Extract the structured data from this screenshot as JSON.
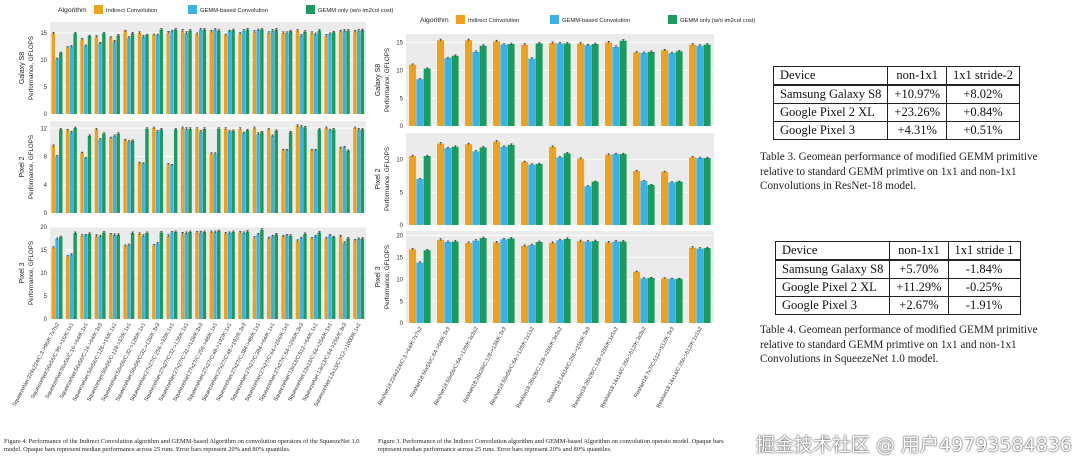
{
  "legend": {
    "title": "Algorithm",
    "items": [
      {
        "label": "Indirect Convolution",
        "color": "#f0a11c"
      },
      {
        "label": "GEMM-based Convolution",
        "color": "#3bb1e6"
      },
      {
        "label": "GEMM only (w/o im2col cost)",
        "color": "#1a9b5f"
      }
    ]
  },
  "chart_data": [
    {
      "type": "bar",
      "chart": "squeezenet",
      "categories": [
        "SqueezeNet:224x224/C:3->96/K:7x7s2",
        "SqueezeNet:56x56/C:96->16/K:1x1",
        "SqueezeNet:56x56/C:16->64/K:1x1",
        "SqueezeNet:56x56/C:16->64/K:3x3",
        "SqueezeNet:56x56/C:128->16/K:1x1",
        "SqueezeNet:56x56/C:128->32/K:1x1",
        "SqueezeNet:56x56/C:32->128/K:1x1",
        "SqueezeNet:56x56/C:32->128/K:3x3",
        "SqueezeNet:27x27/C:256->32/K:1x1",
        "SqueezeNet:27x27/C:32->128/K:1x1",
        "SqueezeNet:27x27/C:32->128/K:3x3",
        "SqueezeNet:27x27/C:256->48/K:1x1",
        "SqueezeNet:27x27/C:48->192/K:1x1",
        "SqueezeNet:27x27/C:48->192/K:3x3",
        "SqueezeNet:27x27/C:384->48/K:1x1",
        "SqueezeNet:27x27/C:384->64/K:1x1",
        "SqueezeNet:27x27/C:64->256/K:1x1",
        "SqueezeNet:27x27/C:64->256/K:3x3",
        "SqueezeNet:13x13/C:512->64/K:1x1",
        "SqueezeNet:13x13/C:64->256/K:1x1",
        "SqueezeNet:13x13/C:64->256/K:3x3",
        "SqueezeNet:13x13/C:512->1000/K:1x1"
      ],
      "panels": [
        {
          "name": "Galaxy S8",
          "ylabel": "Performance, GFLOPS",
          "ylim": [
            0,
            17
          ],
          "yticks": [
            0,
            5,
            10,
            15
          ],
          "series": [
            {
              "name": "Indirect Convolution",
              "values": [
                14.9,
                12.3,
                13.8,
                14.3,
                14.1,
                15.3,
                15.0,
                14.6,
                15.1,
                15.4,
                14.8,
                15.3,
                14.6,
                14.9,
                15.2,
                15.0,
                15.0,
                15.4,
                15.0,
                14.5,
                15.3,
                15.3
              ]
            },
            {
              "name": "GEMM-based Convolution",
              "values": [
                10.2,
                12.5,
                12.6,
                13.1,
                13.4,
                14.1,
                14.3,
                14.6,
                15.3,
                15.0,
                15.6,
                15.6,
                15.3,
                15.4,
                15.5,
                15.4,
                15.0,
                14.5,
                14.8,
                14.8,
                15.4,
                15.4
              ]
            },
            {
              "name": "GEMM only (w/o im2col cost)",
              "values": [
                11.3,
                14.9,
                14.4,
                14.9,
                14.5,
                14.9,
                14.6,
                15.6,
                15.6,
                15.4,
                15.6,
                15.4,
                15.5,
                15.6,
                15.6,
                15.6,
                15.3,
                15.2,
                15.4,
                15.1,
                15.4,
                15.5
              ]
            }
          ]
        },
        {
          "name": "Pixel 2",
          "ylabel": "Performance, GFLOPS",
          "ylim": [
            0,
            13
          ],
          "yticks": [
            0,
            4,
            8,
            12
          ],
          "series": [
            {
              "name": "Indirect Convolution",
              "values": [
                9.5,
                11.7,
                8.5,
                11.8,
                10.6,
                10.3,
                7.1,
                12.0,
                6.9,
                12.0,
                11.9,
                8.4,
                11.9,
                11.9,
                12.0,
                11.8,
                8.9,
                12.3,
                8.9,
                12.0,
                9.2,
                12.0
              ]
            },
            {
              "name": "GEMM-based Convolution",
              "values": [
                8.0,
                11.4,
                7.8,
                10.4,
                10.9,
                10.1,
                7.0,
                11.5,
                6.8,
                11.9,
                11.5,
                8.4,
                11.5,
                11.3,
                11.2,
                10.9,
                8.9,
                12.2,
                8.9,
                11.7,
                9.3,
                11.8
              ]
            },
            {
              "name": "GEMM only (w/o im2col cost)",
              "values": [
                11.8,
                12.0,
                10.9,
                11.2,
                11.2,
                10.2,
                11.9,
                11.8,
                11.8,
                11.9,
                11.9,
                11.9,
                11.6,
                11.7,
                11.4,
                11.6,
                11.4,
                12.1,
                11.8,
                11.8,
                8.8,
                11.8
              ]
            }
          ]
        },
        {
          "name": "Pixel 3",
          "ylabel": "Performance, GFLOPS",
          "ylim": [
            0,
            20
          ],
          "yticks": [
            0,
            5,
            10,
            15,
            20
          ],
          "series": [
            {
              "name": "Indirect Convolution",
              "values": [
                15.5,
                13.6,
                18.1,
                18.1,
                18.4,
                15.9,
                18.5,
                16.0,
                18.1,
                18.6,
                18.8,
                18.9,
                18.6,
                18.8,
                17.7,
                17.6,
                18.0,
                17.0,
                17.5,
                17.6,
                18.0,
                17.1
              ]
            },
            {
              "name": "GEMM-based Convolution",
              "values": [
                17.4,
                14.0,
                18.2,
                18.0,
                18.3,
                16.1,
                18.1,
                16.4,
                18.8,
                18.7,
                18.8,
                18.9,
                18.7,
                18.7,
                18.4,
                18.0,
                18.2,
                17.6,
                18.0,
                18.2,
                16.6,
                17.4
              ]
            },
            {
              "name": "GEMM only (w/o im2col cost)",
              "values": [
                17.8,
                18.7,
                18.5,
                18.8,
                18.3,
                18.7,
                18.7,
                18.8,
                18.9,
                18.9,
                18.9,
                19.1,
                18.9,
                19.0,
                19.4,
                18.4,
                18.1,
                18.5,
                18.8,
                17.8,
                17.5,
                17.5
              ]
            }
          ]
        }
      ]
    },
    {
      "type": "bar",
      "chart": "resnet",
      "categories": [
        "ResNet18:224x224/C:3->64/K:7x7s2",
        "ResNet18:56x56/C:64->64/K:3x3",
        "ResNet18:56x56/C:64->128/K:3x3s2",
        "ResNet18:28x28/C:128->128/K:3x3",
        "ResNet18:56x56/C:64->128/K:1x1s2",
        "ResNet18:28x28/C:128->256/K:3x3s2",
        "ResNet18:14x14/C:256->256/K:3x3",
        "ResNet18:28x28/C:128->256/K:1x1s2",
        "ResNet18:14x14/C:256->512/K:3x3s2",
        "ResNet18:7x7/C:512->512/K:3x3",
        "ResNet18:14x14/C:256->512/K:1x1s2"
      ],
      "panels": [
        {
          "name": "Galaxy S8",
          "ylabel": "Performance, GFLOPS",
          "ylim": [
            0,
            16.5
          ],
          "yticks": [
            0,
            5,
            10,
            15
          ],
          "series": [
            {
              "name": "Indirect Convolution",
              "values": [
                11.0,
                15.4,
                15.4,
                15.2,
                14.6,
                14.9,
                14.8,
                15.0,
                13.2,
                13.6,
                14.6
              ]
            },
            {
              "name": "GEMM-based Convolution",
              "values": [
                8.4,
                12.2,
                13.3,
                14.6,
                12.1,
                14.8,
                14.5,
                14.2,
                13.1,
                13.1,
                14.4
              ]
            },
            {
              "name": "GEMM only (w/o im2col cost)",
              "values": [
                10.3,
                12.6,
                14.4,
                14.7,
                14.8,
                14.8,
                14.7,
                15.3,
                13.3,
                13.4,
                14.6
              ]
            }
          ]
        },
        {
          "name": "Pixel 2",
          "ylabel": "Performance, GFLOPS",
          "ylim": [
            0,
            14
          ],
          "yticks": [
            0,
            5,
            10
          ],
          "series": [
            {
              "name": "Indirect Convolution",
              "values": [
                10.5,
                12.4,
                12.3,
                12.7,
                9.6,
                11.9,
                10.1,
                10.7,
                8.2,
                8.1,
                10.3
              ]
            },
            {
              "name": "GEMM-based Convolution",
              "values": [
                7.0,
                11.7,
                11.2,
                11.9,
                9.2,
                10.3,
                5.9,
                10.8,
                6.7,
                6.5,
                10.2
              ]
            },
            {
              "name": "GEMM only (w/o im2col cost)",
              "values": [
                10.5,
                11.9,
                11.8,
                12.2,
                9.3,
                10.9,
                6.6,
                10.8,
                6.1,
                6.6,
                10.2
              ]
            }
          ]
        },
        {
          "name": "Pixel 3",
          "ylabel": "Performance, GFLOPS",
          "ylim": [
            0,
            21
          ],
          "yticks": [
            0,
            5,
            10,
            15,
            20
          ],
          "series": [
            {
              "name": "Indirect Convolution",
              "values": [
                16.8,
                19.0,
                18.3,
                18.4,
                17.6,
                18.3,
                18.7,
                18.4,
                11.7,
                10.2,
                17.2
              ]
            },
            {
              "name": "GEMM-based Convolution",
              "values": [
                13.8,
                18.5,
                18.8,
                19.1,
                17.8,
                18.9,
                18.6,
                18.6,
                10.2,
                10.1,
                17.0
              ]
            },
            {
              "name": "GEMM only (w/o im2col cost)",
              "values": [
                16.6,
                18.6,
                19.4,
                19.3,
                18.5,
                19.2,
                18.7,
                18.6,
                10.3,
                10.1,
                17.1
              ]
            }
          ]
        }
      ]
    }
  ],
  "figure4_caption": "Figure 4. Performance of the Indirect Convolution algorithm and GEMM-based Algorithm on convolution operators of the SqueezeNet 1.0 model. Opaque bars represent median performance across 25 runs. Error bars represent 20% and 80% quantiles.",
  "figure3_caption": "Figure 3. Performance of the Indirect Convolution algorithm and GEMM-based Algorithm on convolution operato model. Opaque bars represent median performance across 25 runs. Error bars represent 20% and 80% quantiles.",
  "table3": {
    "header": [
      "Device",
      "non-1x1",
      "1x1 stride-2"
    ],
    "rows": [
      [
        "Samsung Galaxy S8",
        "+10.97%",
        "+8.02%"
      ],
      [
        "Google Pixel 2 XL",
        "+23.26%",
        "+0.84%"
      ],
      [
        "Google Pixel 3",
        "+4.31%",
        "+0.51%"
      ]
    ],
    "caption": "Table 3. Geomean performance of modified GEMM primitive relative to standard GEMM primtive on 1x1 and non-1x1 Convolutions in ResNet-18 model."
  },
  "table4": {
    "header": [
      "Device",
      "non-1x1",
      "1x1 stride 1"
    ],
    "rows": [
      [
        "Samsung Galaxy S8",
        "+5.70%",
        "-1.84%"
      ],
      [
        "Google Pixel 2 XL",
        "+11.29%",
        "-0.25%"
      ],
      [
        "Google Pixel 3",
        "+2.67%",
        "-1.91%"
      ]
    ],
    "caption": "Table 4. Geomean performance of modified GEMM primitive relative to standard GEMM primtive on 1x1 and non-1x1 Convolutions in SqueezeNet 1.0 model."
  },
  "watermark": "掘金技术社区 @ 用户49793584836"
}
